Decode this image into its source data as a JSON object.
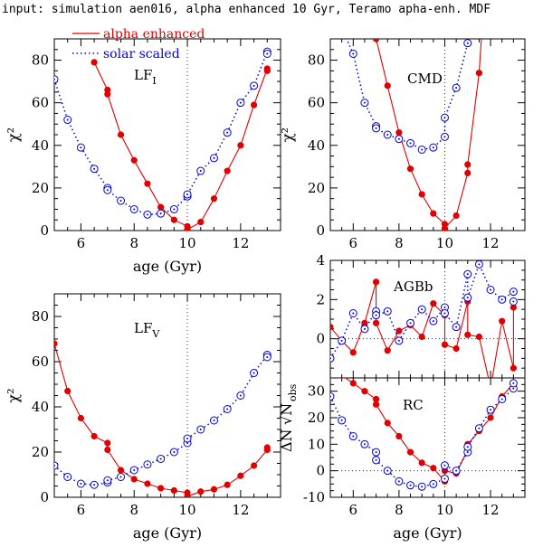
{
  "title": "input: simulation aen016, alpha enhanced 10 Gyr, Teramo apha-enh. MDF",
  "legend": {
    "alpha": "alpha enhanced",
    "solar": "solar scaled"
  },
  "colors": {
    "alpha": "#e00000",
    "solar": "#0000dd"
  },
  "chart_data": [
    {
      "id": "lfi",
      "type": "line",
      "label_main": "LF",
      "label_sub": "I",
      "xlabel": "age (Gyr)",
      "ylabel": "χ²",
      "xlim": [
        5,
        13.5
      ],
      "ylim": [
        0,
        90
      ],
      "xticks": [
        6,
        8,
        10,
        12
      ],
      "yticks": [
        0,
        20,
        40,
        60,
        80
      ],
      "vline": 10,
      "series": [
        {
          "name": "alpha enhanced",
          "x": [
            6.5,
            7.0,
            7.0,
            7.5,
            8.0,
            8.5,
            9.0,
            9.5,
            10.0,
            10.0,
            10.5,
            11.0,
            11.5,
            12.0,
            12.5,
            13.0,
            13.0
          ],
          "y": [
            79,
            66,
            64,
            45,
            33,
            22,
            11,
            5,
            2,
            0.5,
            4,
            15,
            28,
            40,
            59,
            76,
            75
          ]
        },
        {
          "name": "solar scaled",
          "x": [
            5.0,
            5.5,
            6.0,
            6.5,
            7.0,
            7.0,
            7.5,
            8.0,
            8.5,
            9.0,
            9.5,
            10.0,
            10.0,
            10.5,
            11.0,
            11.5,
            12.0,
            12.5,
            13.0,
            13.0
          ],
          "y": [
            71,
            52,
            39,
            29,
            20,
            19,
            14,
            10,
            7.5,
            8,
            10,
            16,
            17,
            28,
            34,
            46,
            60,
            68,
            84,
            83
          ]
        }
      ]
    },
    {
      "id": "cmd",
      "type": "line",
      "label_main": "CMD",
      "label_sub": "",
      "xlabel": "age (Gyr)",
      "ylabel": "χ²",
      "xlim": [
        5,
        13.5
      ],
      "ylim": [
        0,
        90
      ],
      "xticks": [
        6,
        8,
        10,
        12
      ],
      "yticks": [
        0,
        20,
        40,
        60,
        80
      ],
      "vline": 10,
      "series": [
        {
          "name": "alpha enhanced",
          "x": [
            6.0,
            7.0,
            7.5,
            8.0,
            8.5,
            9.0,
            9.5,
            10.0,
            10.0,
            10.5,
            11.0,
            11.0,
            11.5,
            12.0
          ],
          "y": [
            148,
            90,
            68,
            46,
            29,
            17,
            8,
            3,
            1,
            7,
            27,
            31,
            74,
            155
          ]
        },
        {
          "name": "solar scaled",
          "x": [
            5.0,
            5.5,
            6.0,
            6.5,
            7.0,
            7.0,
            7.5,
            8.0,
            8.5,
            9.0,
            9.5,
            10.0,
            10.0,
            10.5,
            11.0,
            11.5
          ],
          "y": [
            145,
            95,
            83,
            60,
            49,
            48,
            45,
            43,
            41,
            38,
            39,
            44,
            53,
            67,
            88,
            110
          ]
        }
      ]
    },
    {
      "id": "lfv",
      "type": "line",
      "label_main": "LF",
      "label_sub": "V",
      "xlabel": "age (Gyr)",
      "ylabel": "χ²",
      "xlim": [
        5,
        13.5
      ],
      "ylim": [
        0,
        90
      ],
      "xticks": [
        6,
        8,
        10,
        12
      ],
      "yticks": [
        0,
        20,
        40,
        60,
        80
      ],
      "vline": 10,
      "series": [
        {
          "name": "alpha enhanced",
          "x": [
            5.0,
            5.5,
            6.0,
            6.5,
            7.0,
            7.0,
            7.5,
            8.0,
            8.5,
            9.0,
            9.5,
            10.0,
            10.0,
            10.5,
            11.0,
            11.5,
            12.0,
            12.5,
            13.0,
            13.0
          ],
          "y": [
            68,
            47,
            35,
            27,
            24,
            21,
            12,
            8,
            6,
            4,
            3,
            2,
            0.5,
            2.5,
            3.5,
            5.5,
            9.5,
            14,
            21,
            22
          ]
        },
        {
          "name": "solar scaled",
          "x": [
            5.0,
            5.5,
            6.0,
            6.5,
            7.0,
            7.0,
            7.5,
            8.0,
            8.5,
            9.0,
            9.5,
            10.0,
            10.0,
            10.5,
            11.0,
            11.5,
            12.0,
            12.5,
            13.0,
            13.0
          ],
          "y": [
            14,
            9,
            6,
            5.5,
            6.5,
            7.5,
            9,
            12,
            14.5,
            17,
            20,
            24,
            26,
            30,
            34,
            39,
            45,
            55,
            63,
            62
          ]
        }
      ]
    },
    {
      "id": "agbb",
      "type": "line",
      "label_main": "AGBb",
      "label_sub": "",
      "xlabel": "",
      "ylabel": "",
      "xlim": [
        5,
        13.5
      ],
      "ylim": [
        -2,
        4
      ],
      "xticks": [
        6,
        8,
        10,
        12
      ],
      "yticks": [
        0,
        2,
        4
      ],
      "vline": 10,
      "hline": 0,
      "series": [
        {
          "name": "alpha enhanced",
          "x": [
            5.0,
            5.5,
            6.0,
            6.5,
            7.0,
            7.0,
            7.5,
            8.0,
            8.5,
            9.0,
            9.5,
            10.0,
            10.0,
            10.5,
            11.0,
            11.0,
            11.5,
            12.0,
            12.5,
            13.0,
            13.0
          ],
          "y": [
            0.6,
            -0.1,
            -0.7,
            0.8,
            2.9,
            0.8,
            -0.6,
            0.4,
            0.7,
            0.1,
            1.8,
            1.2,
            -0.3,
            -0.5,
            1.9,
            0.2,
            0.1,
            -2.5,
            0.9,
            -1.5,
            1.6
          ]
        },
        {
          "name": "solar scaled",
          "x": [
            5.0,
            5.5,
            6.0,
            6.5,
            7.0,
            7.0,
            7.5,
            8.0,
            8.5,
            9.0,
            9.5,
            10.0,
            10.0,
            10.5,
            11.0,
            11.0,
            11.5,
            12.0,
            12.5,
            13.0,
            13.0
          ],
          "y": [
            -1.0,
            -0.1,
            1.3,
            0.5,
            1.4,
            1.2,
            1.4,
            -0.1,
            0.8,
            1.5,
            0.9,
            1.6,
            1.3,
            0.6,
            3.3,
            2.1,
            3.8,
            2.5,
            2.0,
            2.4,
            1.9
          ]
        }
      ]
    },
    {
      "id": "rc",
      "type": "line",
      "label_main": "RC",
      "label_sub": "",
      "xlabel": "age (Gyr)",
      "ylabel": "",
      "xlim": [
        5,
        13.5
      ],
      "ylim": [
        -10,
        35
      ],
      "xticks": [
        6,
        8,
        10,
        12
      ],
      "yticks": [
        -10,
        0,
        10,
        20,
        30
      ],
      "vline": 10,
      "hline": 0,
      "series": [
        {
          "name": "alpha enhanced",
          "x": [
            5.5,
            6.0,
            6.5,
            7.0,
            7.0,
            7.5,
            8.0,
            8.5,
            9.0,
            9.5,
            10.0,
            10.0,
            10.5,
            11.0,
            11.0,
            11.5,
            12.0,
            12.5,
            13.0
          ],
          "y": [
            36,
            33,
            30,
            27,
            25,
            18,
            13,
            7,
            3,
            1,
            -4,
            0,
            -1,
            8,
            10,
            15,
            20,
            28,
            33
          ]
        },
        {
          "name": "solar scaled",
          "x": [
            5.0,
            5.5,
            6.0,
            6.5,
            7.0,
            7.0,
            7.5,
            8.0,
            8.5,
            9.0,
            9.5,
            10.0,
            10.0,
            10.5,
            11.0,
            11.0,
            11.5,
            12.0,
            12.5,
            13.0,
            13.0
          ],
          "y": [
            28,
            19,
            13,
            10,
            7,
            4,
            0,
            -4,
            -5.5,
            -6,
            -5,
            -3,
            2,
            0,
            7,
            9,
            16,
            23,
            27,
            31,
            33
          ]
        }
      ]
    }
  ],
  "shared_ylabel_lower_right": "ΔN/√N_obs"
}
